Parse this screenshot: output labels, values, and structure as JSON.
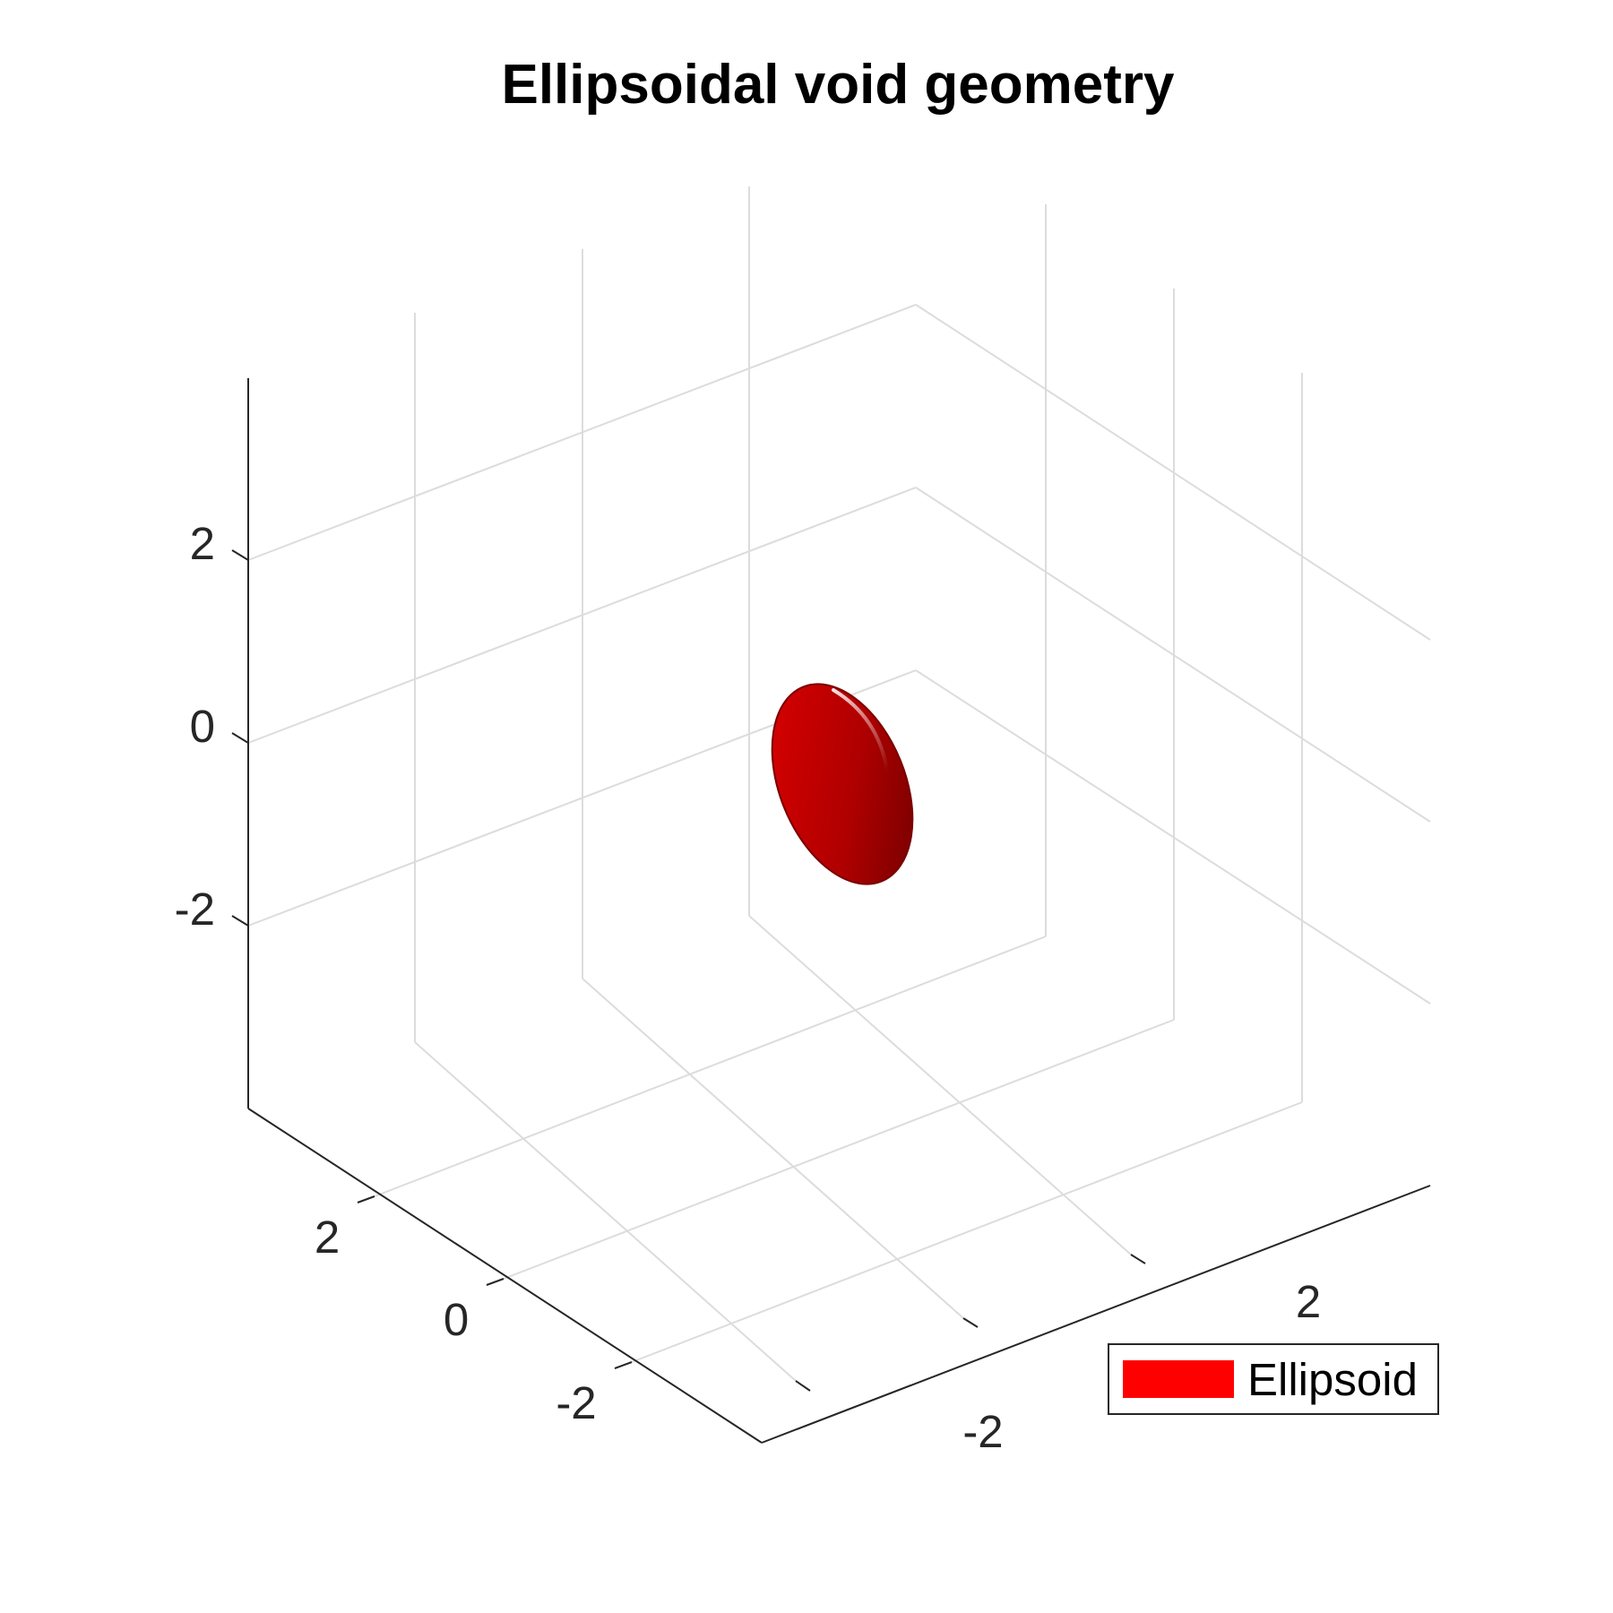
{
  "chart_data": {
    "type": "surface3d",
    "title": "Ellipsoidal void geometry",
    "xlabel": "",
    "ylabel": "",
    "zlabel": "",
    "x_ticks": [
      "-2",
      "0",
      "2"
    ],
    "y_ticks": [
      "-2",
      "0",
      "2"
    ],
    "z_ticks": [
      "-2",
      "0",
      "2"
    ],
    "grid": true,
    "legend": {
      "entries": [
        "Ellipsoid"
      ],
      "placement": "bottom-right"
    },
    "color": "#ff0000",
    "shape": "ellipsoid"
  }
}
